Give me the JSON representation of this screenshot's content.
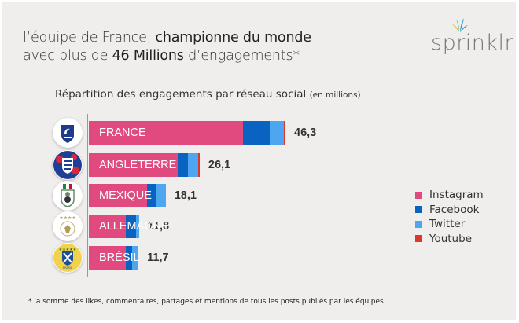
{
  "header": {
    "title_line1_prefix": "l’équipe de France, ",
    "title_line1_bold": "championne du monde",
    "title_line2_prefix": "avec plus de ",
    "title_line2_bold": "46 Millions",
    "title_line2_suffix": " d’engagements*",
    "subtitle": "Répartition des engagements par réseau social ",
    "subtitle_unit": "(en millions)",
    "logo_text": "sprinklr"
  },
  "footnote": "* la somme des likes, commentaires, partages et mentions de tous les posts publiés par les équipes",
  "colors": {
    "Instagram": "#e04a7e",
    "Facebook": "#0b63c1",
    "Twitter": "#4ea6f0",
    "Youtube": "#d9392a",
    "background": "#efeeec"
  },
  "chart_data": {
    "type": "bar",
    "orientation": "horizontal",
    "stacked": true,
    "title": "Répartition des engagements par réseau social (en millions)",
    "xlabel": "",
    "ylabel": "",
    "xlim": [
      0,
      46.3
    ],
    "grid": false,
    "legend_position": "right",
    "categories": [
      "FRANCE",
      "ANGLETERRE",
      "MEXIQUE",
      "ALLEMAGNE",
      "BRÉSIL"
    ],
    "category_badges": [
      "france-crest-icon",
      "england-crest-icon",
      "mexico-crest-icon",
      "germany-crest-icon",
      "brazil-crest-icon"
    ],
    "totals": [
      46.3,
      26.1,
      18.1,
      11.8,
      11.7
    ],
    "total_labels": [
      "46,3",
      "26,1",
      "18,1",
      "11,8",
      "11,7"
    ],
    "series": [
      {
        "name": "Instagram",
        "values": [
          36.3,
          20.9,
          13.7,
          8.7,
          8.7
        ]
      },
      {
        "name": "Facebook",
        "values": [
          6.3,
          2.4,
          2.2,
          2.4,
          1.5
        ]
      },
      {
        "name": "Twitter",
        "values": [
          3.3,
          2.4,
          2.2,
          0.7,
          1.5
        ]
      },
      {
        "name": "Youtube",
        "values": [
          0.4,
          0.4,
          0.0,
          0.0,
          0.0
        ]
      }
    ]
  }
}
